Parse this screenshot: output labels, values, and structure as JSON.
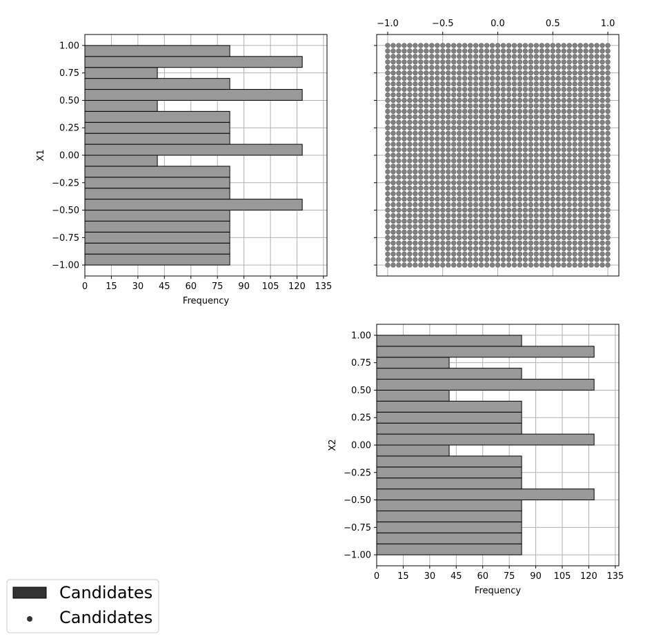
{
  "chart_data": [
    {
      "type": "bar",
      "orientation": "horizontal",
      "panel": "histogram-x1",
      "title": "",
      "xlabel": "Frequency",
      "ylabel": "X1",
      "xlim": [
        0,
        137
      ],
      "ylim": [
        -1.1,
        1.1
      ],
      "xticks": [
        0,
        15,
        30,
        45,
        60,
        75,
        90,
        105,
        120,
        135
      ],
      "yticks": [
        1.0,
        0.75,
        0.5,
        0.25,
        0.0,
        -0.25,
        -0.5,
        -0.75,
        -1.0
      ],
      "ytick_labels": [
        "1.00",
        "0.75",
        "0.50",
        "0.25",
        "0.00",
        "−0.25",
        "−0.50",
        "−0.75",
        "−1.00"
      ],
      "grid": true,
      "bin_edges": [
        -1.0,
        -0.9,
        -0.8,
        -0.7,
        -0.6,
        -0.5,
        -0.4,
        -0.3,
        -0.2,
        -0.1,
        0.0,
        0.1,
        0.2,
        0.3,
        0.4,
        0.5,
        0.6,
        0.7,
        0.8,
        0.9,
        1.0
      ],
      "values": [
        82,
        82,
        82,
        82,
        82,
        123,
        82,
        82,
        82,
        41,
        123,
        82,
        82,
        82,
        41,
        123,
        82,
        41,
        123,
        82
      ]
    },
    {
      "type": "scatter",
      "panel": "scatter-x1-x2",
      "title": "",
      "xlim": [
        -1.1,
        1.1
      ],
      "ylim": [
        -1.1,
        1.1
      ],
      "xticks": [
        -1.0,
        -0.5,
        0.0,
        0.5,
        1.0
      ],
      "xtick_labels": [
        "−1.0",
        "−0.5",
        "0.0",
        "0.5",
        "1.0"
      ],
      "xtick_position": "top",
      "grid": true,
      "grid_points_per_axis": 41,
      "x_range": [
        -1.0,
        1.0
      ],
      "y_range": [
        -1.0,
        1.0
      ],
      "point_count": 1681
    },
    {
      "type": "bar",
      "orientation": "horizontal",
      "panel": "histogram-x2",
      "title": "",
      "xlabel": "Frequency",
      "ylabel": "X2",
      "xlim": [
        0,
        137
      ],
      "ylim": [
        -1.1,
        1.1
      ],
      "xticks": [
        0,
        15,
        30,
        45,
        60,
        75,
        90,
        105,
        120,
        135
      ],
      "yticks": [
        1.0,
        0.75,
        0.5,
        0.25,
        0.0,
        -0.25,
        -0.5,
        -0.75,
        -1.0
      ],
      "ytick_labels": [
        "1.00",
        "0.75",
        "0.50",
        "0.25",
        "0.00",
        "−0.25",
        "−0.50",
        "−0.75",
        "−1.00"
      ],
      "grid": true,
      "bin_edges": [
        -1.0,
        -0.9,
        -0.8,
        -0.7,
        -0.6,
        -0.5,
        -0.4,
        -0.3,
        -0.2,
        -0.1,
        0.0,
        0.1,
        0.2,
        0.3,
        0.4,
        0.5,
        0.6,
        0.7,
        0.8,
        0.9,
        1.0
      ],
      "values": [
        82,
        82,
        82,
        82,
        82,
        123,
        82,
        82,
        82,
        41,
        123,
        82,
        82,
        82,
        41,
        123,
        82,
        41,
        123,
        82
      ]
    }
  ],
  "legend": {
    "placement": "bottom-left",
    "entries": [
      {
        "label": "Candidates",
        "marker": "bar",
        "color": "#333333"
      },
      {
        "label": "Candidates",
        "marker": "dot",
        "color": "#333333"
      }
    ]
  },
  "colors": {
    "bar_fill": "#999999",
    "bar_edge": "#000000",
    "point_fill": "#808080",
    "grid": "#b0b0b0",
    "legend_swatch": "#333333"
  }
}
